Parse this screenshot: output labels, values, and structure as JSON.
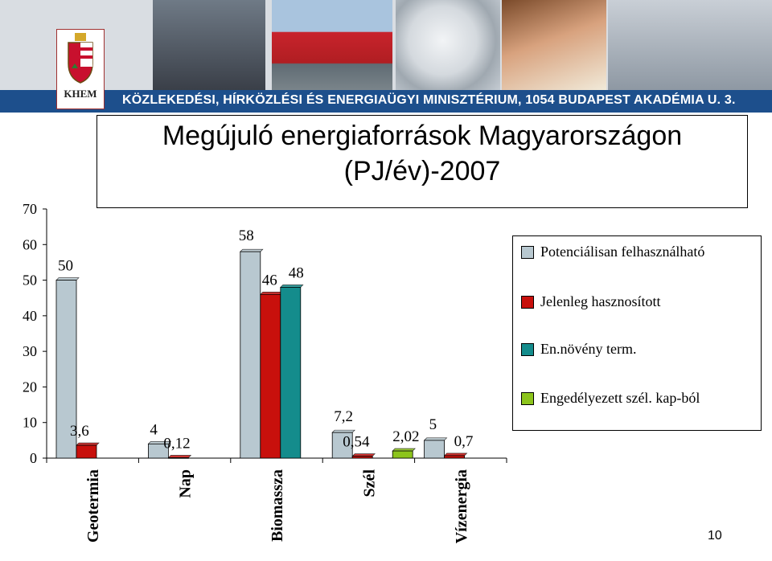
{
  "banner": {
    "ministry_text": "KÖZLEKEDÉSI, HÍRKÖZLÉSI ÉS ENERGIAÜGYI MINISZTÉRIUM, 1054 BUDAPEST AKADÉMIA U. 3.",
    "logo_text": "KHEM",
    "strip_color": "#1d4f8c"
  },
  "page_number": "10",
  "chart_data": {
    "type": "bar",
    "title": "Megújuló energiaforrások Magyarországon",
    "subtitle": "(PJ/év)-2007",
    "xlabel": "",
    "ylabel": "",
    "ylim": [
      0,
      70
    ],
    "yticks": [
      "0",
      "10",
      "20",
      "30",
      "40",
      "50",
      "60",
      "70"
    ],
    "grid": false,
    "legend_position": "right",
    "categories": [
      "Geotermia",
      "Nap",
      "Biomassza",
      "Szél",
      "Vízenergia"
    ],
    "series": [
      {
        "name": "Potenciálisan felhasználható",
        "color": "#b8c8d0",
        "values": [
          50,
          4,
          58,
          7.2,
          5
        ],
        "labels": [
          "50",
          "4",
          "58",
          "7,2",
          "5"
        ]
      },
      {
        "name": "Jelenleg hasznosított",
        "color": "#c8100c",
        "values": [
          3.6,
          0.12,
          46,
          0.54,
          0.7
        ],
        "labels": [
          "3,6",
          "0,12",
          "46",
          "0,54",
          "0,7"
        ]
      },
      {
        "name": "En.növény term.",
        "color": "#148c8c",
        "values": [
          null,
          null,
          48,
          null,
          null
        ],
        "labels": [
          "",
          "",
          "48",
          "",
          ""
        ]
      },
      {
        "name": "Engedélyezett szél. kap-ból",
        "color": "#8cc41c",
        "values": [
          null,
          null,
          null,
          2.02,
          null
        ],
        "labels": [
          "",
          "",
          "",
          "2,02",
          ""
        ]
      }
    ]
  }
}
